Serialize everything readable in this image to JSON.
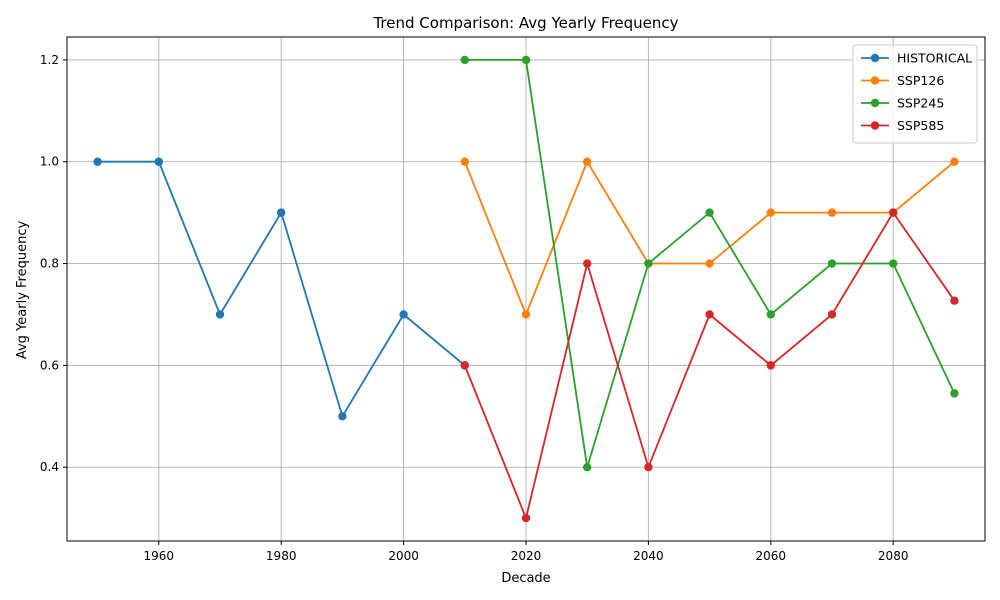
{
  "chart_data": {
    "type": "line",
    "title": "Trend Comparison: Avg Yearly Frequency",
    "xlabel": "Decade",
    "ylabel": "Avg Yearly Frequency",
    "xlim": [
      1945,
      2095
    ],
    "ylim": [
      0.255,
      1.245
    ],
    "xticks": [
      1960,
      1980,
      2000,
      2020,
      2040,
      2060,
      2080
    ],
    "xtick_labels": [
      "1960",
      "1980",
      "2000",
      "2020",
      "2040",
      "2060",
      "2080"
    ],
    "yticks": [
      0.4,
      0.6,
      0.8,
      1.0,
      1.2
    ],
    "ytick_labels": [
      "0.4",
      "0.6",
      "0.8",
      "1.0",
      "1.2"
    ],
    "grid": true,
    "legend_position": "top-right",
    "series": [
      {
        "name": "HISTORICAL",
        "color": "#1f77b4",
        "x": [
          1950,
          1960,
          1970,
          1980,
          1990,
          2000,
          2010
        ],
        "y": [
          1.0,
          1.0,
          0.7,
          0.9,
          0.5,
          0.7,
          0.6
        ]
      },
      {
        "name": "SSP126",
        "color": "#ff7f0e",
        "x": [
          2010,
          2020,
          2030,
          2040,
          2050,
          2060,
          2070,
          2080,
          2090
        ],
        "y": [
          1.0,
          0.7,
          1.0,
          0.8,
          0.8,
          0.9,
          0.9,
          0.9,
          1.0
        ]
      },
      {
        "name": "SSP245",
        "color": "#2ca02c",
        "x": [
          2010,
          2020,
          2030,
          2040,
          2050,
          2060,
          2070,
          2080,
          2090
        ],
        "y": [
          1.2,
          1.2,
          0.4,
          0.8,
          0.9,
          0.7,
          0.8,
          0.8,
          0.545
        ]
      },
      {
        "name": "SSP585",
        "color": "#d62728",
        "x": [
          2010,
          2020,
          2030,
          2040,
          2050,
          2060,
          2070,
          2080,
          2090
        ],
        "y": [
          0.6,
          0.3,
          0.8,
          0.4,
          0.7,
          0.6,
          0.7,
          0.9,
          0.727
        ]
      }
    ]
  }
}
